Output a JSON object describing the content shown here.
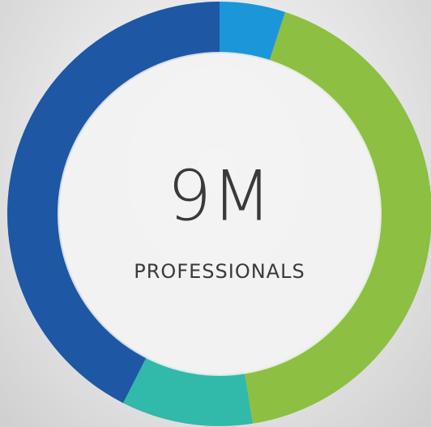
{
  "chart_data": {
    "type": "donut",
    "title": "9M",
    "subtitle": "PROFESSIONALS",
    "values": [
      5,
      42.5,
      10,
      42.5
    ],
    "colors": [
      "#1b96d9",
      "#8cbf42",
      "#31b9aa",
      "#1e57a4"
    ]
  }
}
